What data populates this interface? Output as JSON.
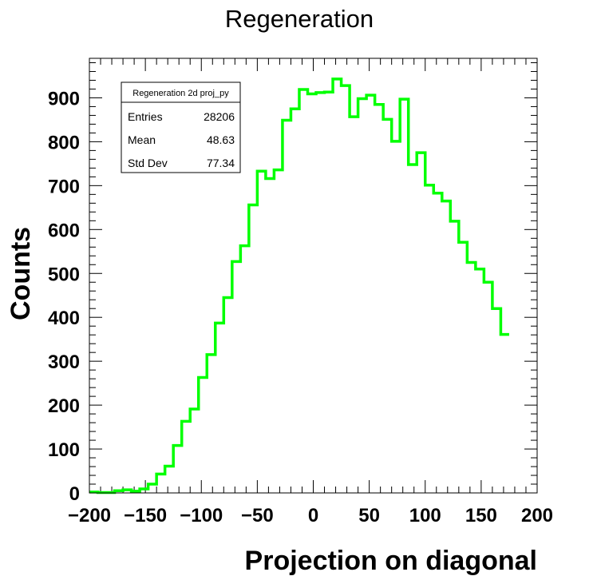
{
  "chart_data": {
    "type": "histogram",
    "title": "Regeneration",
    "xlabel": "Projection on diagonal",
    "ylabel": "Counts",
    "xlim": [
      -200,
      200
    ],
    "ylim": [
      0,
      990
    ],
    "x_ticks": [
      -200,
      -150,
      -100,
      -50,
      0,
      50,
      100,
      150,
      200
    ],
    "x_tick_labels": [
      "−200",
      "−150",
      "−100",
      "−50",
      "0",
      "50",
      "100",
      "150",
      "200"
    ],
    "y_ticks": [
      0,
      100,
      200,
      300,
      400,
      500,
      600,
      700,
      800,
      900
    ],
    "y_tick_labels": [
      "0",
      "100",
      "200",
      "300",
      "400",
      "500",
      "600",
      "700",
      "800",
      "900"
    ],
    "grid": false,
    "line_color": "#00ff00",
    "bin_edges_start": -200,
    "bin_width": 7.5,
    "series": [
      {
        "values": [
          2,
          1,
          1,
          5,
          7,
          4,
          9,
          20,
          43,
          61,
          108,
          163,
          191,
          263,
          315,
          387,
          445,
          527,
          563,
          656,
          733,
          716,
          736,
          849,
          875,
          919,
          909,
          912,
          913,
          943,
          928,
          857,
          898,
          906,
          885,
          851,
          801,
          897,
          748,
          775,
          701,
          683,
          665,
          619,
          571,
          525,
          510,
          480,
          420,
          361
        ]
      }
    ],
    "stats_box": {
      "title": "Regeneration 2d proj_py",
      "position": "top-left",
      "rows": [
        {
          "label": "Entries",
          "value": "28206"
        },
        {
          "label": "Mean",
          "value": "48.63"
        },
        {
          "label": "Std Dev",
          "value": "77.34"
        }
      ]
    }
  }
}
